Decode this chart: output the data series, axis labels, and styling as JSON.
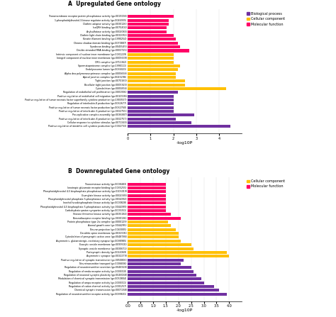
{
  "title_A": "A  Upregulated Gene ontology",
  "title_B": "B  Downregulated Gene ontology",
  "xlabel": "-log10P",
  "colors": {
    "Biological process": "#7030A0",
    "Cellular component": "#FFC000",
    "Molecular function": "#FF0066"
  },
  "upregulated": [
    {
      "label": "Transmembrane receptor protein phosphatase activity (go:0019198)",
      "value": 2.0,
      "category": "Molecular function"
    },
    {
      "label": "1-phosphatidylinositol-3-kinase regulator activity (go:0046935)",
      "value": 1.8,
      "category": "Molecular function"
    },
    {
      "label": "Clathrin adaptor activity (go:0030126)",
      "value": 1.8,
      "category": "Molecular function"
    },
    {
      "label": "IsoQRH binding (go:0070402)",
      "value": 1.7,
      "category": "Molecular function"
    },
    {
      "label": "Arylsulfatase activity (go:0004065)",
      "value": 1.7,
      "category": "Molecular function"
    },
    {
      "label": "Clathrin light chain binding (go:0032051)",
      "value": 2.0,
      "category": "Molecular function"
    },
    {
      "label": "Keratin filament binding (go:1990254)",
      "value": 2.1,
      "category": "Molecular function"
    },
    {
      "label": "Chromo shadow domain binding (go:0070887)",
      "value": 2.2,
      "category": "Molecular function"
    },
    {
      "label": "Syndecan binding (go:0045545)",
      "value": 2.3,
      "category": "Molecular function"
    },
    {
      "label": "Double-stranded RNA binding (go:0003725)",
      "value": 2.7,
      "category": "Molecular function"
    },
    {
      "label": "Intrinsic component of nuclear inner membrane (go:0031229)",
      "value": 2.0,
      "category": "Cellular component"
    },
    {
      "label": "Integral component of nuclear inner membrane (go:0005639)",
      "value": 2.0,
      "category": "Cellular component"
    },
    {
      "label": "CRG complex (go:0711362)",
      "value": 2.0,
      "category": "Cellular component"
    },
    {
      "label": "Spermatoproteome complex (go:1990111)",
      "value": 2.3,
      "category": "Cellular component"
    },
    {
      "label": "Endolysosome lumen (go:0036021)",
      "value": 2.2,
      "category": "Cellular component"
    },
    {
      "label": "Alpha dna polymerase:primase complex (go:0005658)",
      "value": 2.1,
      "category": "Cellular component"
    },
    {
      "label": "Apical junction complex (go:0043296)",
      "value": 2.1,
      "category": "Cellular component"
    },
    {
      "label": "Tight junction (go:0070160)",
      "value": 2.5,
      "category": "Cellular component"
    },
    {
      "label": "Bicellular tight junction (go:0005923)",
      "value": 2.5,
      "category": "Cellular component"
    },
    {
      "label": "Cytoskeleton (go:0005856)",
      "value": 4.3,
      "category": "Cellular component"
    },
    {
      "label": "Regulation of endothelial cell proliferation (go:0001936)",
      "value": 2.2,
      "category": "Biological process"
    },
    {
      "label": "Positive regulation of endothelial cell migration (go:0010595)",
      "value": 2.0,
      "category": "Biological process"
    },
    {
      "label": "Positive regulation of tumor necrosis factor superfamily cytokine production (go:1903557)",
      "value": 2.0,
      "category": "Biological process"
    },
    {
      "label": "Regulation of interleukin-8 production (go:0032677)",
      "value": 2.0,
      "category": "Biological process"
    },
    {
      "label": "Positive regulation of tumor necrosis factor production (go:0032760)",
      "value": 2.0,
      "category": "Biological process"
    },
    {
      "label": "Positive regulation of interleukin-6 production (go:0032755)",
      "value": 2.0,
      "category": "Biological process"
    },
    {
      "label": "Pre-replicative complex assembly (go:0036887)",
      "value": 2.9,
      "category": "Biological process"
    },
    {
      "label": "Positive regulation of interleukin-8 production (go:0032757)",
      "value": 2.1,
      "category": "Biological process"
    },
    {
      "label": "Cellular response to cytokine stimulus (go:0071345)",
      "value": 2.8,
      "category": "Biological process"
    },
    {
      "label": "Positive regulation of dendritic cell cytokine production (go:0002733)",
      "value": 4.5,
      "category": "Biological process"
    }
  ],
  "downregulated": [
    {
      "label": "Transaminase activity (go:0008483)",
      "value": 1.5,
      "category": "Molecular function"
    },
    {
      "label": "Ionotropic glutamate receptor binding (go:0035255)",
      "value": 1.5,
      "category": "Molecular function"
    },
    {
      "label": "Phosphatidylinositol 4,5 bisphosphate phosphatase activity (go:0106019)",
      "value": 1.5,
      "category": "Molecular function"
    },
    {
      "label": "Guanylate kinase activity (go:0004385)",
      "value": 1.5,
      "category": "Molecular function"
    },
    {
      "label": "Phosphatidylinositol phosphate 5-phosphatase activity (go:0034394)",
      "value": 1.5,
      "category": "Molecular function"
    },
    {
      "label": "Inositol hexakisphosphate kinase activity (go:0000828)",
      "value": 1.5,
      "category": "Molecular function"
    },
    {
      "label": "Phosphatidylinositol 4,5 bisphosphate 5-phosphatase activity (go:0044399)",
      "value": 1.5,
      "category": "Molecular function"
    },
    {
      "label": "Carbohydrate:proton symporter activity (go:0005351)",
      "value": 1.5,
      "category": "Molecular function"
    },
    {
      "label": "Histone threonine kinase activity (go:0035184)",
      "value": 1.7,
      "category": "Molecular function"
    },
    {
      "label": "Benzodiazepine receptor binding (go:0030136)",
      "value": 2.1,
      "category": "Molecular function"
    },
    {
      "label": "Protein phosphatase type 2a complex (go:0000129)",
      "value": 1.6,
      "category": "Cellular component"
    },
    {
      "label": "Axonal growth cone (go:0044295)",
      "value": 1.7,
      "category": "Cellular component"
    },
    {
      "label": "Neuron projection (go:0043005)",
      "value": 1.9,
      "category": "Cellular component"
    },
    {
      "label": "Dendritic spine membrane (go:0032591)",
      "value": 2.0,
      "category": "Cellular component"
    },
    {
      "label": "Cytoskeleton of presynaptic active zone (go:0048786)",
      "value": 2.0,
      "category": "Cellular component"
    },
    {
      "label": "Asymmetric, glutamatergic, excitatory synapse (go:0098985)",
      "value": 2.1,
      "category": "Cellular component"
    },
    {
      "label": "Exocytic vesicle membrane (go:0099501)",
      "value": 2.5,
      "category": "Cellular component"
    },
    {
      "label": "Synaptic vesicle membrane (go:0030672)",
      "value": 2.6,
      "category": "Cellular component"
    },
    {
      "label": "Postsynaptic density (go:0014069)",
      "value": 3.9,
      "category": "Cellular component"
    },
    {
      "label": "Asymmetric synapse (go:0032279)",
      "value": 4.0,
      "category": "Cellular component"
    },
    {
      "label": "Positive regulation of synaptic transmission (go:0050806)",
      "value": 2.2,
      "category": "Biological process"
    },
    {
      "label": "Neurotransmitter transport (go:0006836)",
      "value": 2.1,
      "category": "Biological process"
    },
    {
      "label": "Regulation of neurotransmitter secretion (go:0046928)",
      "value": 2.5,
      "category": "Biological process"
    },
    {
      "label": "Regulation of nmda receptor activity (go:2000310)",
      "value": 2.6,
      "category": "Biological process"
    },
    {
      "label": "Regulation of neuronal synaptic plasticity (go:0048168)",
      "value": 2.7,
      "category": "Biological process"
    },
    {
      "label": "Modulation of chemical synaptic transmission (go:0050804)",
      "value": 2.9,
      "category": "Biological process"
    },
    {
      "label": "Regulation of ampa receptor activity (go:2000311)",
      "value": 3.0,
      "category": "Biological process"
    },
    {
      "label": "Regulation of cation channel activity (go:2001257)",
      "value": 3.4,
      "category": "Biological process"
    },
    {
      "label": "Chemical synaptic transmission (go:0007268)",
      "value": 3.6,
      "category": "Biological process"
    },
    {
      "label": "Regulation of neurotransmitter receptor activity (go:0099601)",
      "value": 3.9,
      "category": "Biological process"
    }
  ],
  "fig_width": 4.74,
  "fig_height": 4.47,
  "dpi": 100
}
